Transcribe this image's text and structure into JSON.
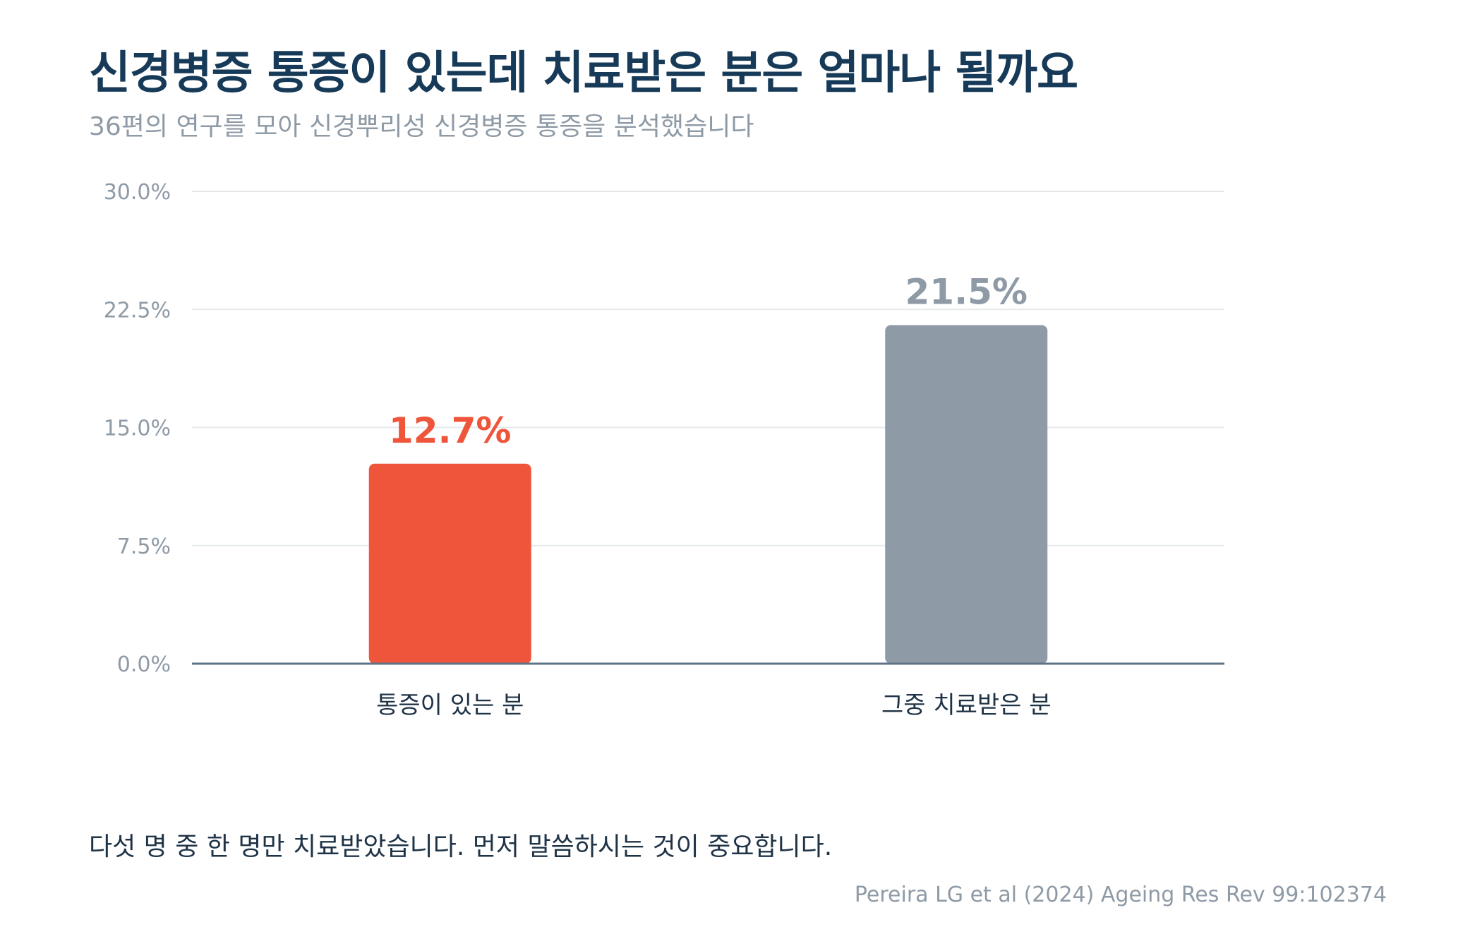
{
  "title": "신경병증 통증이 있는데 치료받은 분은 얼마나 될까요",
  "subtitle": "36편의 연구를 모아 신경뿌리성 신경병증 통증을 분석했습니다",
  "note": "다섯 명 중 한 명만 치료받았습니다. 먼저 말씀하시는 것이 중요합니다.",
  "source": "Pereira LG et al (2024) Ageing Res Rev 99:102374",
  "colors": {
    "highlight": "#ef553b",
    "neutral": "#8e9aa6",
    "grid": "#e6e9ec",
    "axis": "#5f7386",
    "tick_text": "#8e9aa6",
    "category_text": "#1f3347"
  },
  "chart_data": {
    "type": "bar",
    "categories": [
      "통증이 있는 분",
      "그중 치료받은 분"
    ],
    "values": [
      12.7,
      21.5
    ],
    "value_labels": [
      "12.7%",
      "21.5%"
    ],
    "bar_colors": [
      "#ef553b",
      "#8e9aa6"
    ],
    "title": "",
    "xlabel": "",
    "ylabel": "",
    "ylim": [
      0,
      30
    ],
    "yticks": [
      0,
      7.5,
      15,
      22.5,
      30
    ],
    "ytick_labels": [
      "0.0%",
      "7.5%",
      "15.0%",
      "22.5%",
      "30.0%"
    ],
    "grid": true,
    "legend": false
  }
}
